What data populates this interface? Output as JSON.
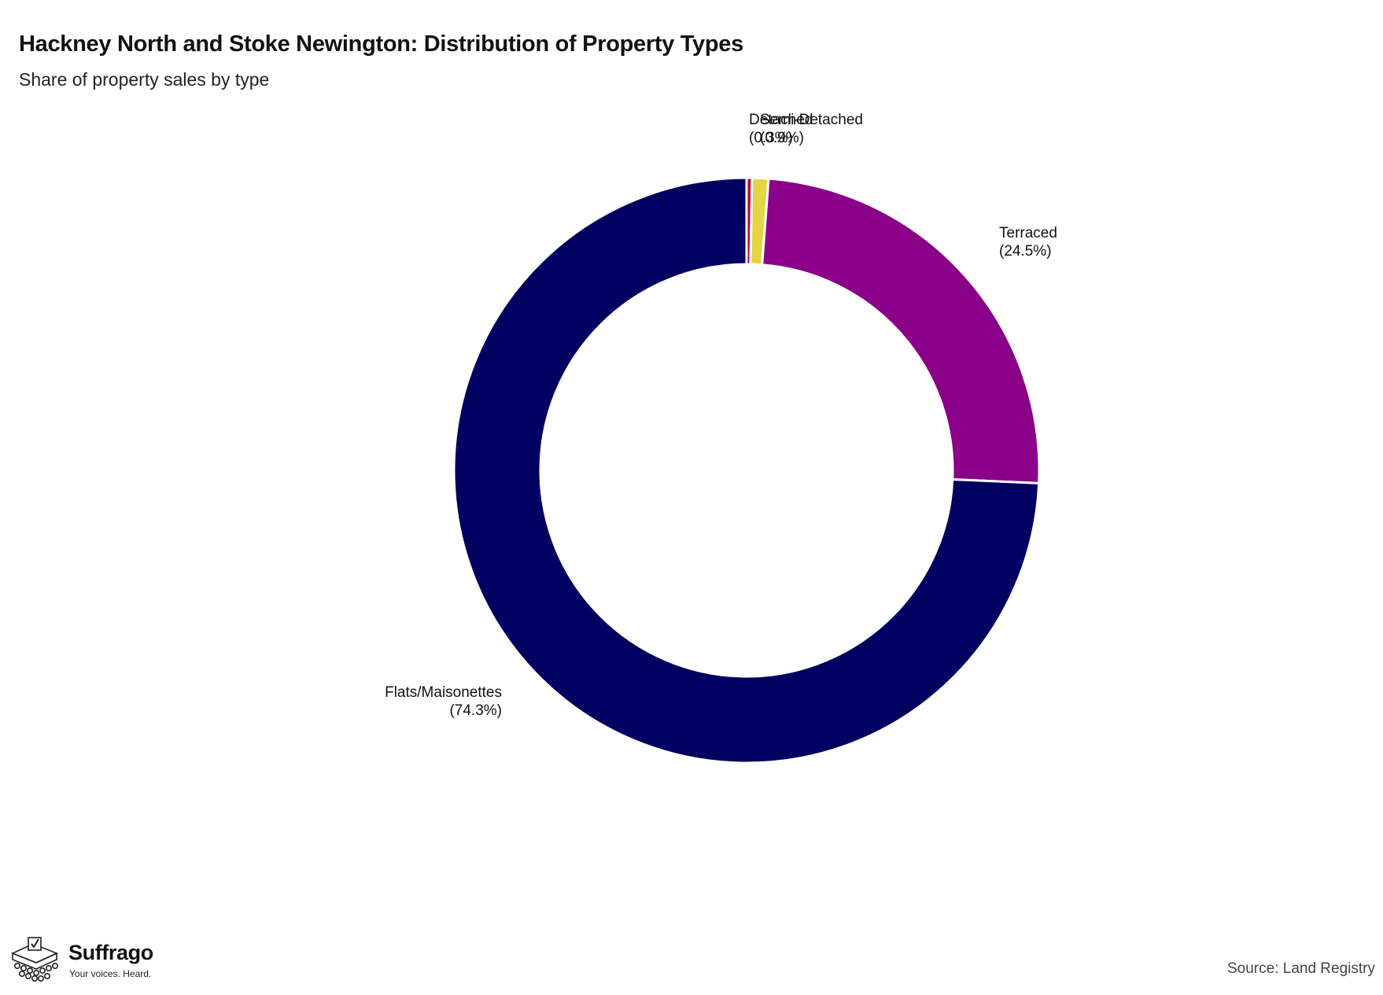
{
  "header": {
    "title": "Hackney North and Stoke Newington: Distribution of Property Types",
    "subtitle": "Share of property sales by type"
  },
  "footer": {
    "brand_name": "Suffrago",
    "brand_tagline": "Your voices. Heard.",
    "source": "Source: Land Registry"
  },
  "chart_data": {
    "type": "pie",
    "style": "donut",
    "title": "Hackney North and Stoke Newington: Distribution of Property Types",
    "subtitle": "Share of property sales by type",
    "start_angle_deg": 0,
    "direction": "clockwise",
    "slices": [
      {
        "name": "Detached",
        "value": 0.3,
        "label": "(0.3%)",
        "color": "#b5003c"
      },
      {
        "name": "Semi-Detached",
        "value": 0.9,
        "label": "(0.9%)",
        "color": "#e3d544"
      },
      {
        "name": "Terraced",
        "value": 24.5,
        "label": "(24.5%)",
        "color": "#8b0089"
      },
      {
        "name": "Flats/Maisonettes",
        "value": 74.3,
        "label": "(74.3%)",
        "color": "#000060"
      }
    ],
    "legend": "none"
  }
}
